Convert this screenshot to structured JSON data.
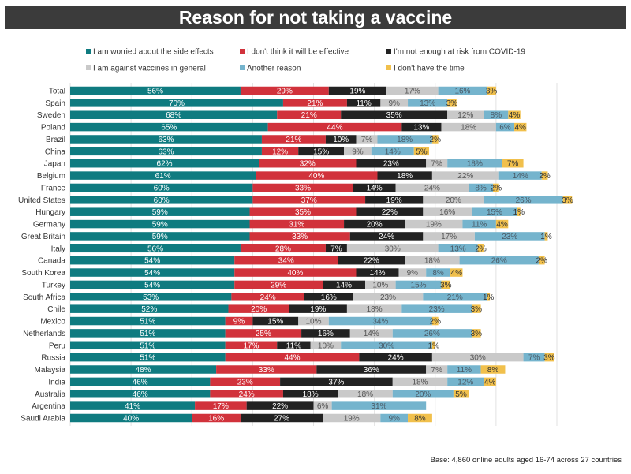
{
  "chart_data": {
    "type": "bar",
    "orientation": "horizontal",
    "stacked": true,
    "title": "Reason for not taking a vaccine",
    "footnote": "Base: 4,860 online adults aged 16-74 across 27 countries",
    "xlim": [
      0,
      160
    ],
    "grid": true,
    "legend_position": "top",
    "categories": [
      "Total",
      "Spain",
      "Sweden",
      "Poland",
      "Brazil",
      "China",
      "Japan",
      "Belgium",
      "France",
      "United States",
      "Hungary",
      "Germany",
      "Great Britain",
      "Italy",
      "Canada",
      "South Korea",
      "Turkey",
      "South Africa",
      "Chile",
      "Mexico",
      "Netherlands",
      "Peru",
      "Russia",
      "Malaysia",
      "India",
      "Australia",
      "Argentina",
      "Saudi Arabia"
    ],
    "series": [
      {
        "name": "I am worried about the side effects",
        "color": "#0f7b80",
        "values": [
          56,
          70,
          68,
          65,
          63,
          63,
          62,
          61,
          60,
          60,
          59,
          59,
          59,
          56,
          54,
          54,
          54,
          53,
          52,
          51,
          51,
          51,
          51,
          48,
          46,
          46,
          41,
          40
        ]
      },
      {
        "name": "I don't think it will be effective",
        "color": "#d1323b",
        "values": [
          29,
          21,
          21,
          44,
          21,
          12,
          32,
          40,
          33,
          37,
          35,
          31,
          33,
          28,
          34,
          40,
          29,
          24,
          20,
          9,
          25,
          17,
          44,
          33,
          23,
          24,
          17,
          16
        ]
      },
      {
        "name": "I'm not enough at risk from COVID-19",
        "color": "#222222",
        "values": [
          19,
          11,
          35,
          13,
          10,
          15,
          23,
          18,
          14,
          19,
          22,
          20,
          24,
          7,
          22,
          14,
          14,
          16,
          19,
          15,
          16,
          11,
          24,
          36,
          37,
          18,
          22,
          27
        ]
      },
      {
        "name": "I am against vaccines in general",
        "color": "#c9c9c9",
        "values": [
          17,
          9,
          12,
          18,
          7,
          9,
          7,
          22,
          24,
          20,
          16,
          19,
          17,
          30,
          18,
          9,
          10,
          23,
          18,
          10,
          14,
          10,
          30,
          7,
          18,
          18,
          6,
          19
        ]
      },
      {
        "name": "Another reason",
        "color": "#75b4cd",
        "values": [
          16,
          13,
          8,
          6,
          18,
          14,
          18,
          14,
          8,
          26,
          15,
          11,
          23,
          13,
          26,
          8,
          15,
          21,
          23,
          34,
          26,
          30,
          7,
          11,
          12,
          20,
          31,
          9
        ]
      },
      {
        "name": "I don't have the time",
        "color": "#f1c04c",
        "values": [
          3,
          3,
          4,
          4,
          2,
          5,
          7,
          2,
          2,
          3,
          1,
          4,
          1,
          2,
          2,
          4,
          3,
          1,
          3,
          2,
          3,
          1,
          3,
          8,
          4,
          5,
          0,
          8
        ]
      }
    ]
  }
}
